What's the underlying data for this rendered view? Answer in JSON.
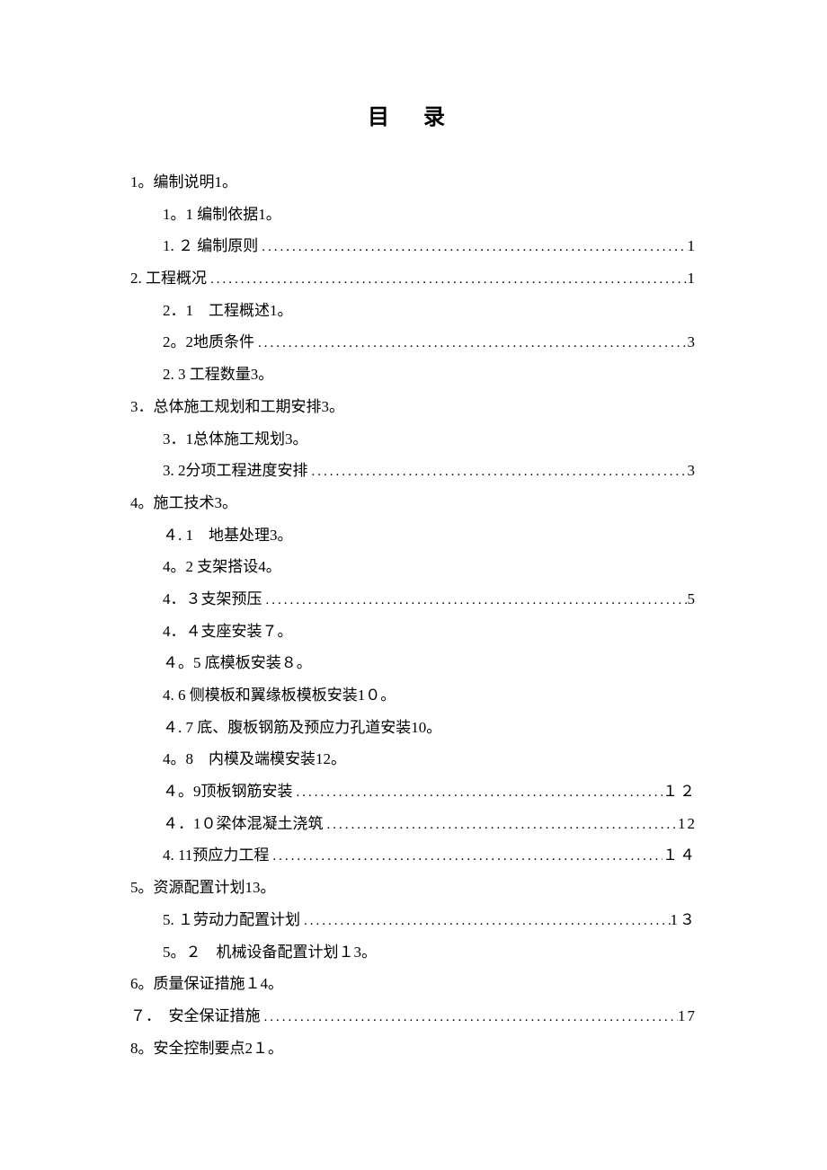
{
  "title": "目 录",
  "entries": [
    {
      "level": 1,
      "text": "1。编制说明1。",
      "hasDots": false
    },
    {
      "level": 2,
      "text": "1。1 编制依据1。",
      "hasDots": false
    },
    {
      "level": 2,
      "text": "1. ２ 编制原则",
      "hasDots": true,
      "page": "1"
    },
    {
      "level": 1,
      "text": "2. 工程概况",
      "hasDots": true,
      "page": "1"
    },
    {
      "level": 2,
      "text": "2．1　工程概述1。",
      "hasDots": false
    },
    {
      "level": 2,
      "text": "2。2地质条件",
      "hasDots": true,
      "page": "3"
    },
    {
      "level": 2,
      "text": "2. 3 工程数量3。",
      "hasDots": false
    },
    {
      "level": 1,
      "text": "3．总体施工规划和工期安排3。",
      "hasDots": false
    },
    {
      "level": 2,
      "text": "3．1总体施工规划3。",
      "hasDots": false
    },
    {
      "level": 2,
      "text": "3. 2分项工程进度安排",
      "hasDots": true,
      "page": "3"
    },
    {
      "level": 1,
      "text": "4。施工技术3。",
      "hasDots": false
    },
    {
      "level": 2,
      "text": "４. 1　地基处理3。",
      "hasDots": false
    },
    {
      "level": 2,
      "text": "4。2 支架搭设4。",
      "hasDots": false
    },
    {
      "level": 2,
      "text": "4．３支架预压",
      "hasDots": true,
      "page": "5"
    },
    {
      "level": 2,
      "text": "4．４支座安装７。",
      "hasDots": false
    },
    {
      "level": 2,
      "text": "４。5 底模板安装８。",
      "hasDots": false
    },
    {
      "level": 2,
      "text": "4. 6 侧模板和翼缘板模板安装1０。",
      "hasDots": false
    },
    {
      "level": 2,
      "text": "４. 7 底、腹板钢筋及预应力孔道安装10。",
      "hasDots": false
    },
    {
      "level": 2,
      "text": "4。8　内模及端模安装12。",
      "hasDots": false
    },
    {
      "level": 2,
      "text": "４。9顶板钢筋安装",
      "hasDots": true,
      "page": "１２"
    },
    {
      "level": 2,
      "text": "４．1０梁体混凝土浇筑",
      "hasDots": true,
      "page": "12"
    },
    {
      "level": 2,
      "text": "4. 11预应力工程",
      "hasDots": true,
      "page": "１４"
    },
    {
      "level": 1,
      "text": "5。资源配置计划13。",
      "hasDots": false
    },
    {
      "level": 2,
      "text": "5. １劳动力配置计划",
      "hasDots": true,
      "page": "1３"
    },
    {
      "level": 2,
      "text": "5。２　机械设备配置计划１3。",
      "hasDots": false
    },
    {
      "level": 1,
      "text": "6。质量保证措施１4。",
      "hasDots": false
    },
    {
      "level": 1,
      "text": "７．　安全保证措施",
      "hasDots": true,
      "page": "17"
    },
    {
      "level": 1,
      "text": "8。安全控制要点2１。",
      "hasDots": false
    }
  ],
  "dotsFill": "............................................................................................",
  "colors": {
    "background": "#ffffff",
    "text": "#000000"
  },
  "typography": {
    "titleFontSize": 24,
    "bodyFontSize": 17,
    "lineHeight": 2.1
  }
}
